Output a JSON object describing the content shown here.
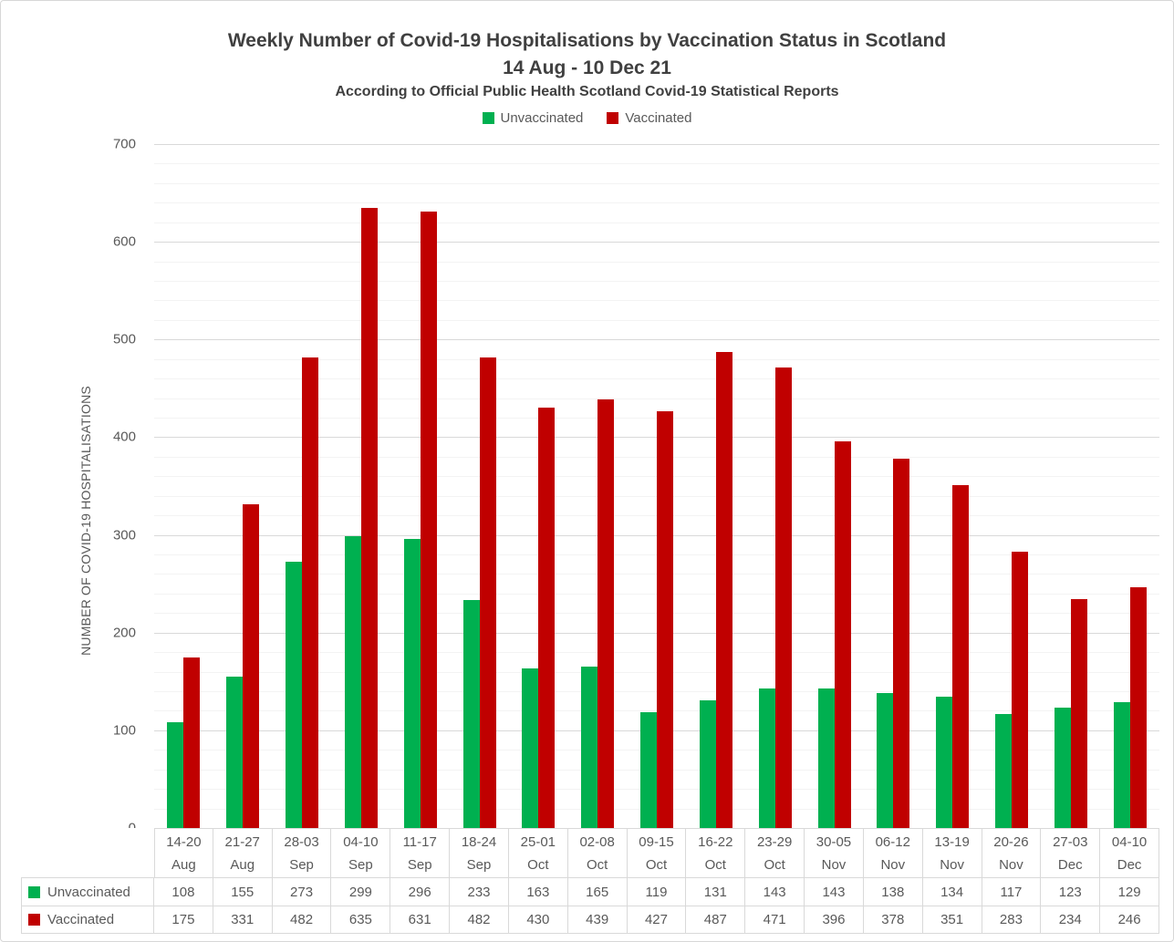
{
  "chart_data": {
    "type": "bar",
    "title_line1": "Weekly Number of Covid-19 Hospitalisations by Vaccination Status in Scotland",
    "title_line2": "14 Aug - 10 Dec 21",
    "subtitle": "According to Official Public Health Scotland Covid-19 Statistical Reports",
    "categories": [
      "14-20 Aug",
      "21-27 Aug",
      "28-03 Sep",
      "04-10 Sep",
      "11-17 Sep",
      "18-24 Sep",
      "25-01 Oct",
      "02-08 Oct",
      "09-15 Oct",
      "16-22 Oct",
      "23-29 Oct",
      "30-05 Nov",
      "06-12 Nov",
      "13-19 Nov",
      "20-26 Nov",
      "27-03 Dec",
      "04-10 Dec"
    ],
    "series": [
      {
        "name": "Unvaccinated",
        "color": "#00B050",
        "values": [
          108,
          155,
          273,
          299,
          296,
          233,
          163,
          165,
          119,
          131,
          143,
          143,
          138,
          134,
          117,
          123,
          129
        ]
      },
      {
        "name": "Vaccinated",
        "color": "#C00000",
        "values": [
          175,
          331,
          482,
          635,
          631,
          482,
          430,
          439,
          427,
          487,
          471,
          396,
          378,
          351,
          283,
          234,
          246
        ]
      }
    ],
    "xlabel": "",
    "ylabel": "NUMBER OF COVID-19 HOSPITALISATIONS",
    "ylim": [
      0,
      700
    ],
    "y_ticks": [
      0,
      100,
      200,
      300,
      400,
      500,
      600,
      700
    ],
    "y_minor_unit": 20,
    "y_major_unit": 100,
    "grid": true,
    "legend_position": "top",
    "data_table_shown": true
  },
  "colors": {
    "title_text": "#404040",
    "axis_text": "#595959",
    "grid_major": "#d9d9d9",
    "grid_minor": "#f3f3f3",
    "table_border": "#d9d9d9",
    "background": "#ffffff",
    "outer_border": "#d7d7d7"
  }
}
